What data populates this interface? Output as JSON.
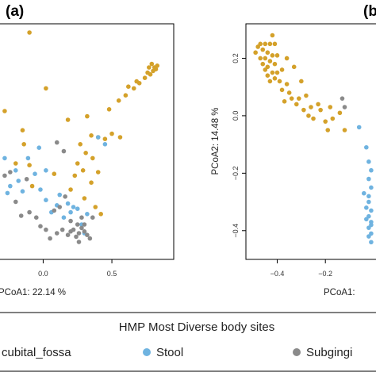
{
  "colors": {
    "Antecubital_fossa": "#D4A12A",
    "Stool": "#6FB3E0",
    "Subgingival_plaque": "#8A8A8A"
  },
  "legend": {
    "title": "HMP Most Diverse body sites",
    "items": [
      {
        "label": "cubital_fossa",
        "site": "Antecubital_fossa"
      },
      {
        "label": "Stool",
        "site": "Stool"
      },
      {
        "label": "Subgingi",
        "site": "Subgingival_plaque"
      }
    ]
  },
  "chart_data": [
    {
      "type": "scatter",
      "panel_label": "(a)",
      "title": "",
      "xlabel": "PCoA1: 22.14 %",
      "ylabel": "",
      "xlim": [
        -0.32,
        0.95
      ],
      "ylim": [
        -0.6,
        0.75
      ],
      "xticks": [
        0.0,
        0.5
      ],
      "xtick_labels": [
        "0.0",
        "0.5"
      ],
      "series": [
        {
          "site": "Antecubital_fossa",
          "points": [
            [
              -0.1,
              0.7
            ],
            [
              -0.28,
              0.25
            ],
            [
              0.02,
              0.38
            ],
            [
              -0.15,
              0.14
            ],
            [
              0.18,
              0.2
            ],
            [
              0.32,
              0.22
            ],
            [
              0.48,
              0.26
            ],
            [
              0.55,
              0.31
            ],
            [
              0.6,
              0.34
            ],
            [
              0.66,
              0.38
            ],
            [
              0.7,
              0.41
            ],
            [
              0.74,
              0.44
            ],
            [
              0.76,
              0.47
            ],
            [
              0.78,
              0.46
            ],
            [
              0.8,
              0.48
            ],
            [
              0.81,
              0.5
            ],
            [
              0.82,
              0.49
            ],
            [
              0.79,
              0.52
            ],
            [
              0.83,
              0.51
            ],
            [
              0.77,
              0.5
            ],
            [
              0.68,
              0.42
            ],
            [
              0.62,
              0.39
            ],
            [
              0.35,
              0.11
            ],
            [
              0.4,
              0.1
            ],
            [
              0.45,
              0.09
            ],
            [
              0.5,
              0.12
            ],
            [
              0.56,
              0.1
            ],
            [
              0.27,
              0.06
            ],
            [
              0.31,
              0.01
            ],
            [
              0.25,
              -0.05
            ],
            [
              0.36,
              -0.02
            ],
            [
              0.29,
              -0.09
            ],
            [
              0.35,
              -0.16
            ],
            [
              0.23,
              -0.12
            ],
            [
              0.3,
              -0.25
            ],
            [
              0.38,
              -0.3
            ],
            [
              0.42,
              -0.34
            ],
            [
              -0.08,
              -0.18
            ],
            [
              -0.14,
              0.06
            ],
            [
              -0.1,
              -0.06
            ],
            [
              0.08,
              -0.11
            ],
            [
              0.2,
              -0.2
            ],
            [
              -0.2,
              -0.05
            ],
            [
              0.4,
              -0.1
            ]
          ]
        },
        {
          "site": "Stool",
          "points": [
            [
              -0.28,
              -0.02
            ],
            [
              -0.24,
              -0.18
            ],
            [
              -0.2,
              -0.09
            ],
            [
              -0.15,
              -0.21
            ],
            [
              -0.11,
              -0.02
            ],
            [
              -0.06,
              -0.11
            ],
            [
              -0.02,
              -0.2
            ],
            [
              0.02,
              -0.26
            ],
            [
              0.06,
              -0.33
            ],
            [
              0.1,
              -0.29
            ],
            [
              0.15,
              -0.36
            ],
            [
              0.2,
              -0.33
            ],
            [
              0.25,
              -0.31
            ],
            [
              0.28,
              -0.4
            ],
            [
              0.32,
              -0.34
            ],
            [
              0.02,
              -0.09
            ],
            [
              -0.03,
              0.04
            ],
            [
              0.4,
              0.1
            ],
            [
              0.45,
              0.06
            ],
            [
              -0.26,
              -0.22
            ],
            [
              0.18,
              -0.28
            ],
            [
              0.12,
              -0.23
            ],
            [
              -0.18,
              -0.15
            ],
            [
              0.3,
              -0.45
            ],
            [
              0.22,
              -0.3
            ]
          ]
        },
        {
          "site": "Subgingival_plaque",
          "points": [
            [
              -0.28,
              -0.12
            ],
            [
              -0.24,
              -0.1
            ],
            [
              -0.2,
              -0.27
            ],
            [
              -0.16,
              -0.35
            ],
            [
              -0.1,
              -0.33
            ],
            [
              -0.05,
              -0.36
            ],
            [
              -0.02,
              -0.41
            ],
            [
              0.02,
              -0.43
            ],
            [
              0.05,
              -0.48
            ],
            [
              0.1,
              -0.45
            ],
            [
              0.14,
              -0.43
            ],
            [
              0.18,
              -0.46
            ],
            [
              0.2,
              -0.44
            ],
            [
              0.22,
              -0.43
            ],
            [
              0.24,
              -0.47
            ],
            [
              0.26,
              -0.45
            ],
            [
              0.28,
              -0.42
            ],
            [
              0.3,
              -0.44
            ],
            [
              0.32,
              -0.46
            ],
            [
              0.34,
              -0.48
            ],
            [
              0.12,
              -0.3
            ],
            [
              0.16,
              -0.24
            ],
            [
              0.2,
              -0.38
            ],
            [
              0.28,
              -0.36
            ],
            [
              0.3,
              -0.4
            ],
            [
              0.15,
              0.02
            ],
            [
              0.1,
              0.07
            ],
            [
              0.25,
              -0.4
            ],
            [
              0.36,
              -0.36
            ],
            [
              -0.12,
              -0.14
            ],
            [
              0.08,
              -0.32
            ],
            [
              0.26,
              -0.5
            ]
          ]
        }
      ]
    },
    {
      "type": "scatter",
      "panel_label": "(b",
      "title": "",
      "xlabel": "PCoA1:",
      "ylabel": "PCoA2: 14.48 %",
      "xlim": [
        -0.53,
        0.02
      ],
      "ylim": [
        -0.5,
        0.32
      ],
      "xticks": [
        -0.4,
        -0.2
      ],
      "xtick_labels": [
        "−0.4",
        "−0.2"
      ],
      "yticks": [
        -0.4,
        -0.2,
        0.0,
        0.2
      ],
      "ytick_labels": [
        "−0.4",
        "−0.2",
        "0.0",
        "0.2"
      ],
      "series": [
        {
          "site": "Antecubital_fossa",
          "points": [
            [
              -0.42,
              0.28
            ],
            [
              -0.41,
              0.25
            ],
            [
              -0.4,
              0.21
            ],
            [
              -0.46,
              0.23
            ],
            [
              -0.45,
              0.2
            ],
            [
              -0.44,
              0.17
            ],
            [
              -0.43,
              0.25
            ],
            [
              -0.47,
              0.2
            ],
            [
              -0.48,
              0.24
            ],
            [
              -0.49,
              0.22
            ],
            [
              -0.46,
              0.18
            ],
            [
              -0.45,
              0.16
            ],
            [
              -0.44,
              0.14
            ],
            [
              -0.43,
              0.12
            ],
            [
              -0.42,
              0.15
            ],
            [
              -0.41,
              0.18
            ],
            [
              -0.4,
              0.15
            ],
            [
              -0.39,
              0.12
            ],
            [
              -0.38,
              0.09
            ],
            [
              -0.37,
              0.05
            ],
            [
              -0.36,
              0.11
            ],
            [
              -0.35,
              0.08
            ],
            [
              -0.34,
              0.06
            ],
            [
              -0.33,
              0.17
            ],
            [
              -0.32,
              0.04
            ],
            [
              -0.31,
              0.06
            ],
            [
              -0.3,
              0.12
            ],
            [
              -0.29,
              0.02
            ],
            [
              -0.28,
              0.07
            ],
            [
              -0.27,
              0.0
            ],
            [
              -0.26,
              0.03
            ],
            [
              -0.25,
              -0.01
            ],
            [
              -0.23,
              0.04
            ],
            [
              -0.22,
              0.02
            ],
            [
              -0.44,
              0.22
            ],
            [
              -0.47,
              0.25
            ],
            [
              -0.42,
              0.21
            ],
            [
              -0.43,
              0.19
            ],
            [
              -0.41,
              0.13
            ],
            [
              -0.36,
              0.2
            ],
            [
              -0.38,
              0.16
            ],
            [
              -0.2,
              -0.02
            ],
            [
              -0.19,
              -0.05
            ],
            [
              -0.17,
              -0.01
            ],
            [
              -0.14,
              0.01
            ],
            [
              -0.18,
              0.03
            ],
            [
              -0.12,
              -0.05
            ],
            [
              -0.45,
              0.25
            ]
          ]
        },
        {
          "site": "Stool",
          "points": [
            [
              -0.06,
              -0.04
            ],
            [
              -0.03,
              -0.11
            ],
            [
              -0.02,
              -0.16
            ],
            [
              -0.01,
              -0.25
            ],
            [
              -0.02,
              -0.28
            ],
            [
              -0.03,
              -0.32
            ],
            [
              -0.02,
              -0.35
            ],
            [
              -0.01,
              -0.37
            ],
            [
              -0.02,
              -0.39
            ],
            [
              -0.01,
              -0.41
            ],
            [
              -0.02,
              -0.3
            ],
            [
              -0.04,
              -0.27
            ],
            [
              -0.01,
              -0.33
            ],
            [
              -0.02,
              -0.22
            ],
            [
              -0.01,
              -0.19
            ],
            [
              -0.03,
              -0.36
            ],
            [
              -0.02,
              -0.42
            ],
            [
              -0.01,
              -0.44
            ],
            [
              -0.01,
              -0.38
            ]
          ]
        },
        {
          "site": "Subgingival_plaque",
          "points": [
            [
              -0.13,
              0.06
            ],
            [
              -0.12,
              0.03
            ]
          ]
        }
      ]
    }
  ]
}
